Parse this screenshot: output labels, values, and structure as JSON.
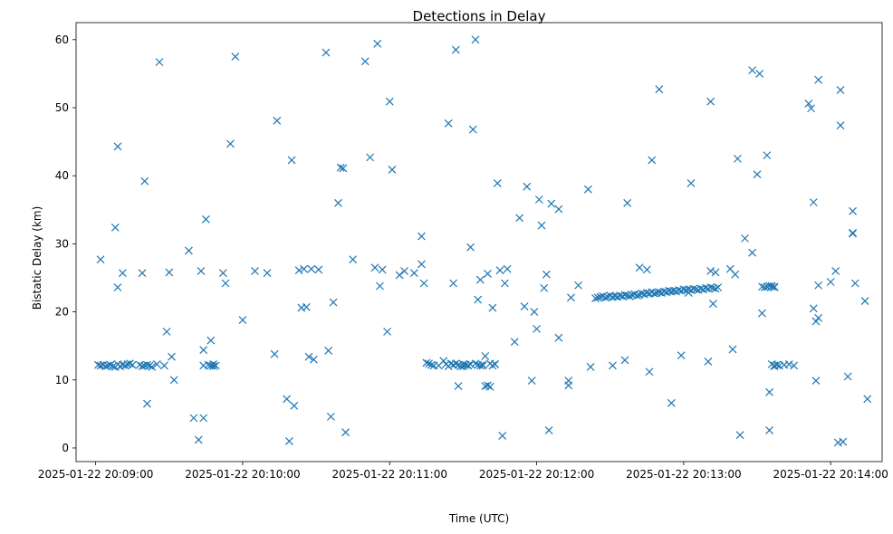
{
  "chart_data": {
    "type": "scatter",
    "title": "Detections in Delay",
    "xlabel": "Time (UTC)",
    "ylabel": "Bistatic Delay (km)",
    "marker": "x",
    "color": "#1f77b4",
    "grid": false,
    "legend": "none",
    "xlim": [
      "2025-01-22 20:08:52",
      "2025-01-22 20:14:21"
    ],
    "ylim": [
      -2.0,
      62.5
    ],
    "xticks": [
      "2025-01-22 20:09:00",
      "2025-01-22 20:10:00",
      "2025-01-22 20:11:00",
      "2025-01-22 20:12:00",
      "2025-01-22 20:13:00",
      "2025-01-22 20:14:00"
    ],
    "yticks": [
      0,
      10,
      20,
      30,
      40,
      50,
      60
    ],
    "x": [
      "2025-01-22 20:09:01",
      "2025-01-22 20:09:02",
      "2025-01-22 20:09:03",
      "2025-01-22 20:09:04",
      "2025-01-22 20:09:05",
      "2025-01-22 20:09:06",
      "2025-01-22 20:09:07",
      "2025-01-22 20:09:08",
      "2025-01-22 20:09:09",
      "2025-01-22 20:09:10",
      "2025-01-22 20:09:11",
      "2025-01-22 20:09:12",
      "2025-01-22 20:09:13",
      "2025-01-22 20:09:14",
      "2025-01-22 20:09:15",
      "2025-01-22 20:09:02",
      "2025-01-22 20:09:08",
      "2025-01-22 20:09:09",
      "2025-01-22 20:09:11",
      "2025-01-22 20:09:09",
      "2025-01-22 20:09:19",
      "2025-01-22 20:09:18",
      "2025-01-22 20:09:19",
      "2025-01-22 20:09:20",
      "2025-01-22 20:09:21",
      "2025-01-22 20:09:22",
      "2025-01-22 20:09:23",
      "2025-01-22 20:09:25",
      "2025-01-22 20:09:20",
      "2025-01-22 20:09:21",
      "2025-01-22 20:09:26",
      "2025-01-22 20:09:28",
      "2025-01-22 20:09:29",
      "2025-01-22 20:09:30",
      "2025-01-22 20:09:31",
      "2025-01-22 20:09:32",
      "2025-01-22 20:09:40",
      "2025-01-22 20:09:42",
      "2025-01-22 20:09:38",
      "2025-01-22 20:09:43",
      "2025-01-22 20:09:44",
      "2025-01-22 20:09:44",
      "2025-01-22 20:09:45",
      "2025-01-22 20:09:46",
      "2025-01-22 20:09:47",
      "2025-01-22 20:09:48",
      "2025-01-22 20:09:44",
      "2025-01-22 20:09:47",
      "2025-01-22 20:09:48",
      "2025-01-22 20:09:49",
      "2025-01-22 20:09:52",
      "2025-01-22 20:09:53",
      "2025-01-22 20:09:55",
      "2025-01-22 20:09:57",
      "2025-01-22 20:10:00",
      "2025-01-22 20:10:05",
      "2025-01-22 20:10:10",
      "2025-01-22 20:10:14",
      "2025-01-22 20:10:13",
      "2025-01-22 20:10:18",
      "2025-01-22 20:10:19",
      "2025-01-22 20:10:21",
      "2025-01-22 20:10:20",
      "2025-01-22 20:10:23",
      "2025-01-22 20:10:24",
      "2025-01-22 20:10:25",
      "2025-01-22 20:10:26",
      "2025-01-22 20:10:27",
      "2025-01-22 20:10:28",
      "2025-01-22 20:10:29",
      "2025-01-22 20:10:31",
      "2025-01-22 20:10:34",
      "2025-01-22 20:10:35",
      "2025-01-22 20:10:36",
      "2025-01-22 20:10:37",
      "2025-01-22 20:10:39",
      "2025-01-22 20:10:40",
      "2025-01-22 20:10:41",
      "2025-01-22 20:10:42",
      "2025-01-22 20:10:45",
      "2025-01-22 20:10:50",
      "2025-01-22 20:10:52",
      "2025-01-22 20:10:54",
      "2025-01-22 20:10:55",
      "2025-01-22 20:10:56",
      "2025-01-22 20:10:57",
      "2025-01-22 20:10:59",
      "2025-01-22 20:11:00",
      "2025-01-22 20:11:01",
      "2025-01-22 20:11:04",
      "2025-01-22 20:11:06",
      "2025-01-22 20:11:10",
      "2025-01-22 20:11:13",
      "2025-01-22 20:11:13",
      "2025-01-22 20:11:14",
      "2025-01-22 20:11:15",
      "2025-01-22 20:11:16",
      "2025-01-22 20:11:17",
      "2025-01-22 20:11:18",
      "2025-01-22 20:11:20",
      "2025-01-22 20:11:22",
      "2025-01-22 20:11:23",
      "2025-01-22 20:11:24",
      "2025-01-22 20:11:25",
      "2025-01-22 20:11:26",
      "2025-01-22 20:11:27",
      "2025-01-22 20:11:28",
      "2025-01-22 20:11:29",
      "2025-01-22 20:11:30",
      "2025-01-22 20:11:31",
      "2025-01-22 20:11:32",
      "2025-01-22 20:11:33",
      "2025-01-22 20:11:34",
      "2025-01-22 20:11:35",
      "2025-01-22 20:11:36",
      "2025-01-22 20:11:37",
      "2025-01-22 20:11:38",
      "2025-01-22 20:11:39",
      "2025-01-22 20:11:40",
      "2025-01-22 20:11:41",
      "2025-01-22 20:11:42",
      "2025-01-22 20:11:43",
      "2025-01-22 20:11:24",
      "2025-01-22 20:11:26",
      "2025-01-22 20:11:27",
      "2025-01-22 20:11:28",
      "2025-01-22 20:11:30",
      "2025-01-22 20:11:32",
      "2025-01-22 20:11:33",
      "2025-01-22 20:11:35",
      "2025-01-22 20:11:36",
      "2025-01-22 20:11:37",
      "2025-01-22 20:11:38",
      "2025-01-22 20:11:39",
      "2025-01-22 20:11:40",
      "2025-01-22 20:11:41",
      "2025-01-22 20:11:42",
      "2025-01-22 20:11:43",
      "2025-01-22 20:11:44",
      "2025-01-22 20:11:45",
      "2025-01-22 20:11:46",
      "2025-01-22 20:11:47",
      "2025-01-22 20:11:48",
      "2025-01-22 20:11:51",
      "2025-01-22 20:11:53",
      "2025-01-22 20:11:55",
      "2025-01-22 20:11:56",
      "2025-01-22 20:11:58",
      "2025-01-22 20:11:59",
      "2025-01-22 20:12:00",
      "2025-01-22 20:12:01",
      "2025-01-22 20:12:02",
      "2025-01-22 20:12:03",
      "2025-01-22 20:12:04",
      "2025-01-22 20:12:05",
      "2025-01-22 20:12:06",
      "2025-01-22 20:12:09",
      "2025-01-22 20:12:09",
      "2025-01-22 20:12:13",
      "2025-01-22 20:12:13",
      "2025-01-22 20:12:14",
      "2025-01-22 20:12:17",
      "2025-01-22 20:12:21",
      "2025-01-22 20:12:24",
      "2025-01-22 20:12:25",
      "2025-01-22 20:12:26",
      "2025-01-22 20:12:27",
      "2025-01-22 20:12:28",
      "2025-01-22 20:12:29",
      "2025-01-22 20:12:30",
      "2025-01-22 20:12:31",
      "2025-01-22 20:12:32",
      "2025-01-22 20:12:33",
      "2025-01-22 20:12:34",
      "2025-01-22 20:12:35",
      "2025-01-22 20:12:36",
      "2025-01-22 20:12:37",
      "2025-01-22 20:12:38",
      "2025-01-22 20:12:39",
      "2025-01-22 20:12:40",
      "2025-01-22 20:12:41",
      "2025-01-22 20:12:42",
      "2025-01-22 20:12:43",
      "2025-01-22 20:12:44",
      "2025-01-22 20:12:45",
      "2025-01-22 20:12:46",
      "2025-01-22 20:12:47",
      "2025-01-22 20:12:48",
      "2025-01-22 20:12:49",
      "2025-01-22 20:12:50",
      "2025-01-22 20:12:51",
      "2025-01-22 20:12:52",
      "2025-01-22 20:12:53",
      "2025-01-22 20:12:54",
      "2025-01-22 20:12:55",
      "2025-01-22 20:12:56",
      "2025-01-22 20:12:57",
      "2025-01-22 20:12:58",
      "2025-01-22 20:12:59",
      "2025-01-22 20:13:00",
      "2025-01-22 20:13:01",
      "2025-01-22 20:13:02",
      "2025-01-22 20:13:03",
      "2025-01-22 20:13:04",
      "2025-01-22 20:13:05",
      "2025-01-22 20:13:06",
      "2025-01-22 20:13:07",
      "2025-01-22 20:13:08",
      "2025-01-22 20:13:09",
      "2025-01-22 20:13:10",
      "2025-01-22 20:13:11",
      "2025-01-22 20:13:12",
      "2025-01-22 20:13:13",
      "2025-01-22 20:13:14",
      "2025-01-22 20:12:22",
      "2025-01-22 20:12:36",
      "2025-01-22 20:12:37",
      "2025-01-22 20:12:31",
      "2025-01-22 20:12:42",
      "2025-01-22 20:12:45",
      "2025-01-22 20:12:46",
      "2025-01-22 20:12:47",
      "2025-01-22 20:12:50",
      "2025-01-22 20:12:55",
      "2025-01-22 20:12:59",
      "2025-01-22 20:13:03",
      "2025-01-22 20:13:02",
      "2025-01-22 20:13:10",
      "2025-01-22 20:13:11",
      "2025-01-22 20:13:13",
      "2025-01-22 20:13:12",
      "2025-01-22 20:13:11",
      "2025-01-22 20:13:19",
      "2025-01-22 20:13:21",
      "2025-01-22 20:13:23",
      "2025-01-22 20:13:20",
      "2025-01-22 20:13:22",
      "2025-01-22 20:13:25",
      "2025-01-22 20:13:28",
      "2025-01-22 20:13:28",
      "2025-01-22 20:13:30",
      "2025-01-22 20:13:31",
      "2025-01-22 20:13:32",
      "2025-01-22 20:13:34",
      "2025-01-22 20:13:35",
      "2025-01-22 20:13:32",
      "2025-01-22 20:13:33",
      "2025-01-22 20:13:34",
      "2025-01-22 20:13:35",
      "2025-01-22 20:13:36",
      "2025-01-22 20:13:37",
      "2025-01-22 20:13:37",
      "2025-01-22 20:13:36",
      "2025-01-22 20:13:35",
      "2025-01-22 20:13:37",
      "2025-01-22 20:13:36",
      "2025-01-22 20:13:37",
      "2025-01-22 20:13:38",
      "2025-01-22 20:13:39",
      "2025-01-22 20:13:41",
      "2025-01-22 20:13:43",
      "2025-01-22 20:13:45",
      "2025-01-22 20:13:51",
      "2025-01-22 20:13:53",
      "2025-01-22 20:13:52",
      "2025-01-22 20:13:53",
      "2025-01-22 20:13:54",
      "2025-01-22 20:13:55",
      "2025-01-22 20:13:55",
      "2025-01-22 20:13:54",
      "2025-01-22 20:13:55",
      "2025-01-22 20:14:00",
      "2025-01-22 20:14:02",
      "2025-01-22 20:14:03",
      "2025-01-22 20:14:04",
      "2025-01-22 20:14:05",
      "2025-01-22 20:14:04",
      "2025-01-22 20:14:07",
      "2025-01-22 20:14:09",
      "2025-01-22 20:14:09",
      "2025-01-22 20:14:09",
      "2025-01-22 20:14:10",
      "2025-01-22 20:14:14",
      "2025-01-22 20:14:15"
    ],
    "y": [
      12.2,
      12.1,
      12.2,
      12.0,
      12.1,
      12.2,
      12.0,
      11.9,
      12.3,
      12.0,
      12.2,
      12.1,
      12.3,
      12.4,
      12.2,
      27.7,
      32.4,
      23.6,
      25.7,
      44.3,
      25.7,
      12.2,
      12.0,
      12.1,
      12.2,
      12.1,
      11.9,
      12.3,
      39.2,
      6.5,
      56.7,
      12.1,
      17.1,
      25.8,
      13.4,
      10.0,
      4.4,
      1.2,
      29.0,
      26.0,
      14.4,
      4.4,
      33.6,
      12.2,
      12.1,
      12.3,
      12.1,
      15.8,
      12.0,
      12.1,
      25.7,
      24.2,
      44.7,
      57.5,
      18.8,
      26.0,
      25.7,
      48.1,
      13.8,
      7.2,
      1.0,
      6.2,
      42.3,
      26.1,
      20.6,
      26.3,
      20.7,
      13.4,
      26.3,
      13.0,
      26.2,
      58.1,
      14.3,
      4.6,
      21.4,
      36.0,
      41.2,
      41.1,
      2.3,
      27.7,
      56.8,
      42.7,
      26.5,
      59.4,
      23.8,
      26.2,
      17.1,
      50.9,
      40.9,
      25.4,
      26.0,
      25.7,
      27.0,
      31.1,
      24.2,
      12.5,
      12.4,
      12.2,
      12.1,
      12.1,
      12.8,
      12.3,
      47.7,
      12.4,
      24.2,
      58.5,
      9.1,
      12.0,
      12.3,
      12.2,
      12.1,
      29.5,
      46.8,
      60.0,
      21.8,
      24.7,
      12.1,
      9.1,
      9.2,
      9.0,
      12.1,
      12.3,
      12.0,
      12.2,
      12.4,
      12.2,
      12.0,
      12.1,
      12.3,
      12.4,
      12.2,
      12.1,
      12.2,
      13.5,
      25.6,
      12.4,
      20.6,
      12.3,
      38.9,
      26.1,
      1.8,
      24.2,
      26.3,
      15.6,
      33.8,
      20.8,
      38.4,
      9.9,
      20.0,
      17.5,
      36.5,
      32.7,
      23.5,
      25.5,
      2.6,
      35.9,
      35.1,
      16.2,
      9.2,
      9.9,
      22.1,
      23.9,
      38.0,
      22.0,
      22.1,
      22.2,
      22.3,
      22.1,
      22.2,
      22.4,
      22.2,
      22.3,
      22.2,
      22.4,
      22.3,
      22.5,
      22.4,
      22.3,
      22.5,
      22.6,
      22.4,
      22.5,
      22.7,
      22.6,
      22.8,
      22.7,
      22.9,
      22.7,
      22.8,
      22.9,
      22.8,
      23.0,
      22.9,
      23.1,
      23.0,
      23.1,
      23.0,
      23.2,
      23.1,
      23.3,
      23.2,
      23.3,
      23.2,
      23.4,
      23.3,
      23.2,
      23.4,
      23.3,
      23.5,
      23.4,
      23.6,
      23.5,
      23.4,
      23.6,
      11.9,
      12.9,
      36.0,
      12.1,
      26.5,
      26.2,
      11.2,
      42.3,
      52.7,
      6.6,
      13.6,
      38.9,
      22.8,
      12.7,
      26.0,
      25.8,
      21.2,
      50.9,
      26.3,
      25.5,
      1.9,
      14.5,
      42.5,
      30.8,
      28.7,
      55.5,
      40.2,
      55.0,
      19.8,
      43.0,
      8.2,
      23.7,
      23.6,
      23.7,
      23.8,
      23.7,
      23.6,
      23.7,
      23.8,
      2.6,
      12.1,
      12.3,
      12.0,
      12.2,
      12.1,
      12.2,
      12.3,
      12.1,
      50.6,
      36.1,
      49.9,
      20.5,
      9.9,
      54.1,
      19.1,
      18.6,
      23.9,
      24.4,
      26.0,
      0.8,
      47.4,
      0.9,
      52.6,
      10.5,
      31.5,
      31.6,
      34.8,
      24.2,
      21.6,
      7.2
    ]
  }
}
